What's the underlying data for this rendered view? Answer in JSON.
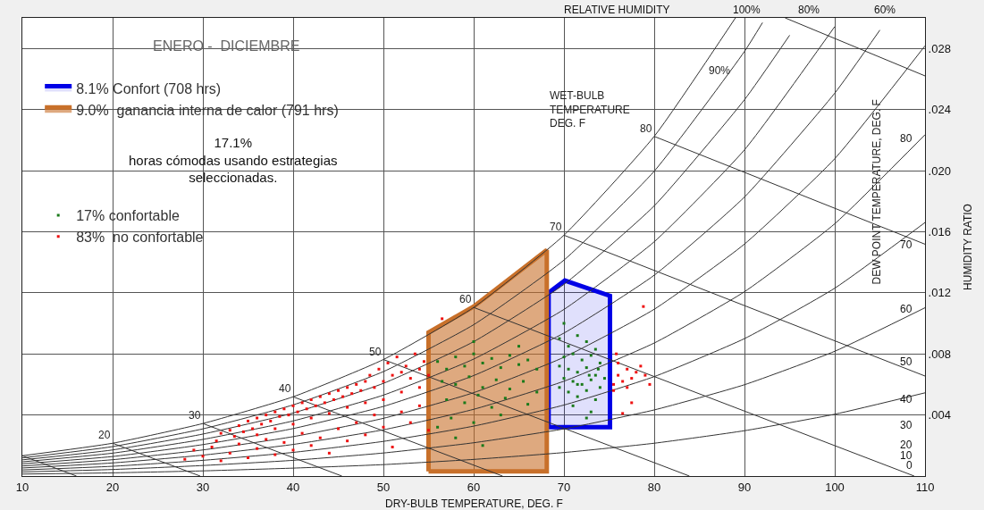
{
  "chart_data": {
    "type": "scatter",
    "title": "ENERO -  DICIEMBRE",
    "xlabel": "DRY-BULB TEMPERATURE, DEG. F",
    "ylabel": "HUMIDITY RATIO",
    "y2label": "DEW POINT TEMPERATURE, DEG. F",
    "xlim": [
      10,
      110
    ],
    "xticks": [
      10,
      20,
      30,
      40,
      50,
      60,
      70,
      80,
      90,
      100,
      110
    ],
    "ylim": [
      0,
      0.03
    ],
    "yticks": [
      {
        "value": 0.004,
        "label": ".004"
      },
      {
        "value": 0.008,
        "label": ".008"
      },
      {
        "value": 0.012,
        "label": ".012"
      },
      {
        "value": 0.016,
        "label": ".016"
      },
      {
        "value": 0.02,
        "label": ".020"
      },
      {
        "value": 0.024,
        "label": ".024"
      },
      {
        "value": 0.028,
        "label": ".028"
      }
    ],
    "grid": true,
    "legend": "top left",
    "annotations": [
      "17.1%\nhoras cómodas usando estrategias\nseleccionadas.",
      "RELATIVE HUMIDITY",
      "WET-BULB\nTEMPERATURE\nDEG. F",
      "100%",
      "80%",
      "60%",
      "90%",
      "0",
      "10",
      "20",
      "30",
      "40",
      "50",
      "60",
      "70",
      "80",
      {
        "text": "20",
        "x": 20,
        "y": 0.00215
      },
      {
        "text": "30",
        "x": 30,
        "y": 0.00344
      },
      {
        "text": "40",
        "x": 40,
        "y": 0.00519
      },
      {
        "text": "50",
        "x": 50,
        "y": 0.00763
      },
      {
        "text": "60",
        "x": 60,
        "y": 0.01104
      },
      {
        "text": "70",
        "x": 70,
        "y": 0.01577
      },
      {
        "text": "80",
        "x": 80,
        "y": 0.02224
      }
    ],
    "series": [
      {
        "type": "line",
        "color": "#333333",
        "x": [
          10,
          20,
          30,
          40,
          50,
          60,
          70,
          80,
          90,
          100,
          110
        ],
        "values": [
          0.00013,
          0.00021,
          0.00034,
          0.00052,
          0.00075,
          0.00109,
          0.00154,
          0.00215,
          0.00297,
          0.00405,
          0.00545
        ]
      },
      {
        "type": "line",
        "color": "#333333",
        "x": [
          10,
          20,
          30,
          40,
          50,
          60,
          70,
          80,
          90,
          100,
          110
        ],
        "values": [
          0.00027,
          0.00043,
          0.00069,
          0.00103,
          0.00151,
          0.00218,
          0.00309,
          0.00433,
          0.00598,
          0.00817,
          0.01102
        ]
      },
      {
        "type": "line",
        "color": "#333333",
        "x": [
          10,
          20,
          30,
          40,
          50,
          60,
          70,
          80,
          90,
          100,
          110
        ],
        "values": [
          0.0004,
          0.00064,
          0.00103,
          0.00155,
          0.00227,
          0.00327,
          0.00465,
          0.00651,
          0.009,
          0.0123,
          0.0166
        ]
      },
      {
        "type": "line",
        "color": "#333333",
        "x": [
          10,
          20,
          30,
          40,
          50,
          60,
          70,
          80,
          90,
          100,
          110
        ],
        "values": [
          0.00053,
          0.00086,
          0.00137,
          0.00207,
          0.00303,
          0.00437,
          0.00621,
          0.00871,
          0.01207,
          0.01652,
          0.02235
        ]
      },
      {
        "type": "line",
        "color": "#333333",
        "x": [
          10,
          20,
          30,
          40,
          50,
          60,
          70,
          80,
          90,
          100,
          110
        ],
        "values": [
          0.00066,
          0.00107,
          0.00171,
          0.00258,
          0.00378,
          0.00546,
          0.00778,
          0.01092,
          0.01519,
          0.02078,
          0.02817
        ]
      },
      {
        "type": "line",
        "color": "#333333",
        "x": [
          10,
          20,
          30,
          40,
          50,
          60,
          70,
          80,
          90,
          100,
          105
        ],
        "values": [
          0.0008,
          0.00128,
          0.00206,
          0.00311,
          0.00456,
          0.00658,
          0.00936,
          0.01315,
          0.01827,
          0.02507,
          0.0292
        ]
      },
      {
        "type": "line",
        "color": "#333333",
        "x": [
          10,
          20,
          30,
          40,
          50,
          60,
          70,
          80,
          90,
          100
        ],
        "values": [
          0.00093,
          0.0015,
          0.0024,
          0.00361,
          0.0053,
          0.00766,
          0.01091,
          0.01534,
          0.02136,
          0.02943
        ]
      },
      {
        "type": "line",
        "color": "#333333",
        "x": [
          10,
          20,
          30,
          40,
          50,
          60,
          70,
          80,
          90,
          95
        ],
        "values": [
          0.00106,
          0.00171,
          0.00275,
          0.00413,
          0.00607,
          0.0088,
          0.01255,
          0.01769,
          0.02464,
          0.02886
        ]
      },
      {
        "type": "line",
        "color": "#333333",
        "x": [
          10,
          20,
          30,
          40,
          50,
          60,
          70,
          80,
          90,
          92
        ],
        "values": [
          0.00119,
          0.00193,
          0.00309,
          0.00466,
          0.00684,
          0.00991,
          0.01414,
          0.01996,
          0.0278,
          0.02969
        ]
      },
      {
        "type": "line",
        "color": "#333333",
        "x": [
          10,
          20,
          30,
          40,
          50,
          60,
          70,
          80,
          89
        ],
        "values": [
          0.00133,
          0.00215,
          0.00344,
          0.00519,
          0.00763,
          0.01104,
          0.01577,
          0.02224,
          0.03
        ]
      },
      {
        "type": "line",
        "color": "#333333",
        "x": [
          10,
          16
        ],
        "values": [
          0.00133,
          0
        ]
      },
      {
        "type": "line",
        "color": "#333333",
        "x": [
          20,
          29.7
        ],
        "values": [
          0.00215,
          0
        ]
      },
      {
        "type": "line",
        "color": "#333333",
        "x": [
          30,
          45.4
        ],
        "values": [
          0.00344,
          0
        ]
      },
      {
        "type": "line",
        "color": "#333333",
        "x": [
          40,
          63.2
        ],
        "values": [
          0.00519,
          0
        ]
      },
      {
        "type": "line",
        "color": "#333333",
        "x": [
          50,
          83.9
        ],
        "values": [
          0.00763,
          0
        ]
      },
      {
        "type": "line",
        "color": "#333333",
        "x": [
          60,
          108.8
        ],
        "values": [
          0.01104,
          0
        ]
      },
      {
        "type": "line",
        "color": "#333333",
        "x": [
          70,
          110
        ],
        "values": [
          0.01577,
          0.00655
        ]
      },
      {
        "type": "line",
        "color": "#333333",
        "x": [
          80,
          110
        ],
        "values": [
          0.02224,
          0.01518
        ]
      },
      {
        "type": "line",
        "color": "#333333",
        "x": [
          94.5,
          110
        ],
        "values": [
          0.03,
          0.0262
        ]
      },
      {
        "type": "area",
        "name": "8.1% Confort (708 hrs)",
        "color": "#0000e6",
        "x": [
          68.3,
          68.3,
          70.1,
          75.1,
          75.1,
          68.3
        ],
        "values": [
          0.0032,
          0.012,
          0.0128,
          0.0118,
          0.0032,
          0.0032
        ]
      },
      {
        "type": "area",
        "name": "9.0%  ganancia interna de calor (791 hrs)",
        "color": "#c8702a",
        "x": [
          55,
          55,
          60,
          68.1,
          68.1,
          55
        ],
        "values": [
          0.0003,
          0.0094,
          0.0111,
          0.0148,
          0.0003,
          0.0003
        ]
      },
      {
        "name": "17% confortable",
        "marker": "square",
        "color": "#1a7a1a",
        "x": [
          69.5,
          70.5,
          71.5,
          72.5,
          73.5,
          70,
          71,
          72,
          73,
          74,
          69.5,
          70.5,
          71.5,
          72.5,
          73.5,
          74.5,
          70,
          71,
          72,
          73,
          74,
          69.5,
          70.5,
          71.5,
          72.5,
          73.5,
          71,
          73,
          72.5,
          70,
          71.5,
          72.8,
          73.8,
          56,
          57,
          58,
          59,
          60,
          61,
          62,
          63,
          64,
          65,
          66,
          67,
          56.5,
          58,
          59.5,
          61,
          62.5,
          64,
          65.5,
          67,
          57,
          59,
          60.5,
          62,
          63.5,
          66,
          57.5,
          60,
          63,
          58,
          61,
          56,
          65,
          60
        ],
        "values": [
          0.009,
          0.0085,
          0.0092,
          0.0088,
          0.0083,
          0.0078,
          0.008,
          0.0076,
          0.0079,
          0.0074,
          0.0072,
          0.007,
          0.0068,
          0.0071,
          0.0066,
          0.0064,
          0.0064,
          0.0062,
          0.006,
          0.0063,
          0.0058,
          0.0058,
          0.0055,
          0.0052,
          0.0056,
          0.005,
          0.0046,
          0.0042,
          0.0038,
          0.01,
          0.006,
          0.0066,
          0.007,
          0.0075,
          0.007,
          0.0078,
          0.0072,
          0.008,
          0.0074,
          0.0077,
          0.0071,
          0.0079,
          0.0073,
          0.0076,
          0.007,
          0.0062,
          0.006,
          0.0065,
          0.0058,
          0.0063,
          0.0057,
          0.0062,
          0.0055,
          0.005,
          0.0048,
          0.0053,
          0.0045,
          0.0051,
          0.0047,
          0.0038,
          0.0035,
          0.004,
          0.0025,
          0.002,
          0.0032,
          0.0085,
          0.0088
        ]
      },
      {
        "name": "83%  no confortable",
        "marker": "square",
        "color": "#ee1111",
        "x": [
          31.5,
          32,
          33,
          33.5,
          34,
          34.5,
          35,
          35.5,
          36,
          36,
          36.5,
          37,
          37.5,
          38,
          38,
          38.5,
          39,
          39.5,
          40,
          40,
          40.5,
          41,
          41.5,
          42,
          42,
          42.5,
          43,
          43.5,
          44,
          44,
          44.5,
          45,
          45.5,
          46,
          46,
          46.5,
          47,
          47.5,
          48,
          48,
          48.5,
          49,
          49.5,
          50,
          50,
          50.5,
          51,
          51.5,
          52,
          52,
          52.5,
          53,
          53.5,
          54,
          54,
          54.5,
          55,
          28,
          29,
          30,
          31,
          32,
          33,
          34,
          35,
          36,
          37,
          38,
          39,
          40,
          41,
          42,
          43,
          44,
          45,
          46,
          47,
          48,
          49,
          50,
          51,
          52,
          53,
          54,
          55,
          56.5,
          75.5,
          76,
          76.5,
          77,
          77.5,
          76,
          78,
          75.5,
          77,
          79,
          75.8,
          78.5,
          77.5,
          79.5,
          76.5,
          78.8
        ],
        "values": [
          0.0023,
          0.0028,
          0.003,
          0.0026,
          0.0033,
          0.0029,
          0.0036,
          0.0031,
          0.0038,
          0.0027,
          0.0034,
          0.004,
          0.0036,
          0.0042,
          0.0031,
          0.0039,
          0.0044,
          0.004,
          0.0046,
          0.0034,
          0.0042,
          0.0048,
          0.0044,
          0.005,
          0.0038,
          0.0046,
          0.0052,
          0.0048,
          0.0054,
          0.0041,
          0.005,
          0.0056,
          0.0052,
          0.0058,
          0.0045,
          0.0054,
          0.006,
          0.0056,
          0.0062,
          0.0048,
          0.0066,
          0.0058,
          0.007,
          0.0062,
          0.005,
          0.0074,
          0.0066,
          0.0078,
          0.0068,
          0.0055,
          0.0072,
          0.0064,
          0.008,
          0.007,
          0.0058,
          0.0075,
          0.0066,
          0.0011,
          0.0017,
          0.0013,
          0.0019,
          0.001,
          0.0015,
          0.0021,
          0.0012,
          0.0018,
          0.0024,
          0.0014,
          0.0022,
          0.0017,
          0.0028,
          0.002,
          0.0025,
          0.0015,
          0.0031,
          0.0023,
          0.0035,
          0.0027,
          0.004,
          0.0032,
          0.0019,
          0.0042,
          0.0035,
          0.0046,
          0.003,
          0.0103,
          0.006,
          0.0066,
          0.0062,
          0.007,
          0.0064,
          0.0074,
          0.0068,
          0.0056,
          0.0058,
          0.0066,
          0.008,
          0.0072,
          0.0048,
          0.006,
          0.0041,
          0.0111
        ]
      }
    ]
  }
}
